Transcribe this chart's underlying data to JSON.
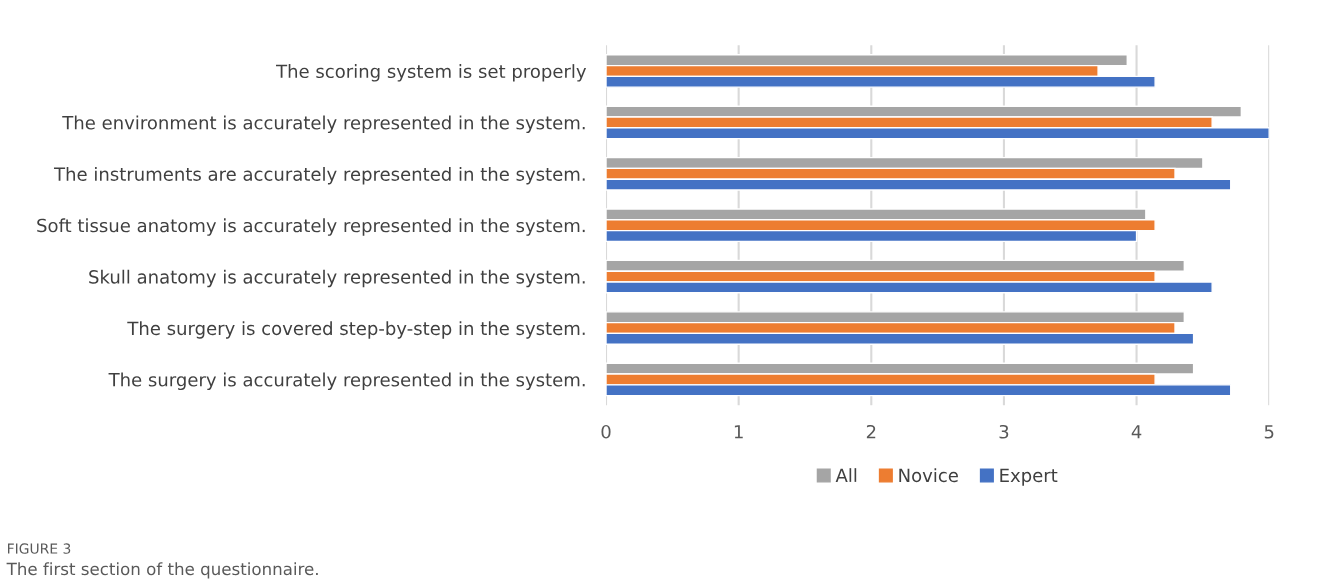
{
  "chart_data": {
    "type": "bar",
    "orientation": "horizontal",
    "categories": [
      "The scoring system is set properly",
      "The environment is accurately represented in the system.",
      "The instruments are accurately represented in the system.",
      "Soft tissue anatomy is accurately represented in the system.",
      "Skull anatomy is accurately represented in the system.",
      "The surgery is covered step-by-step in the system.",
      "The surgery is accurately represented in the system."
    ],
    "series": [
      {
        "name": "All",
        "color": "#a5a5a5",
        "values": [
          3.93,
          4.79,
          4.5,
          4.07,
          4.36,
          4.36,
          4.43
        ]
      },
      {
        "name": "Novice",
        "color": "#ed7d31",
        "values": [
          3.71,
          4.57,
          4.29,
          4.14,
          4.14,
          4.29,
          4.14
        ]
      },
      {
        "name": "Expert",
        "color": "#4472c4",
        "values": [
          4.14,
          5.0,
          4.71,
          4.0,
          4.57,
          4.43,
          4.71
        ]
      }
    ],
    "xlim": [
      0,
      5
    ],
    "xticks": [
      0,
      1,
      2,
      3,
      4,
      5
    ],
    "grid": "x",
    "legend": "bottom",
    "annotations": [
      "FIGURE 3",
      "The first section of the questionnaire."
    ]
  }
}
